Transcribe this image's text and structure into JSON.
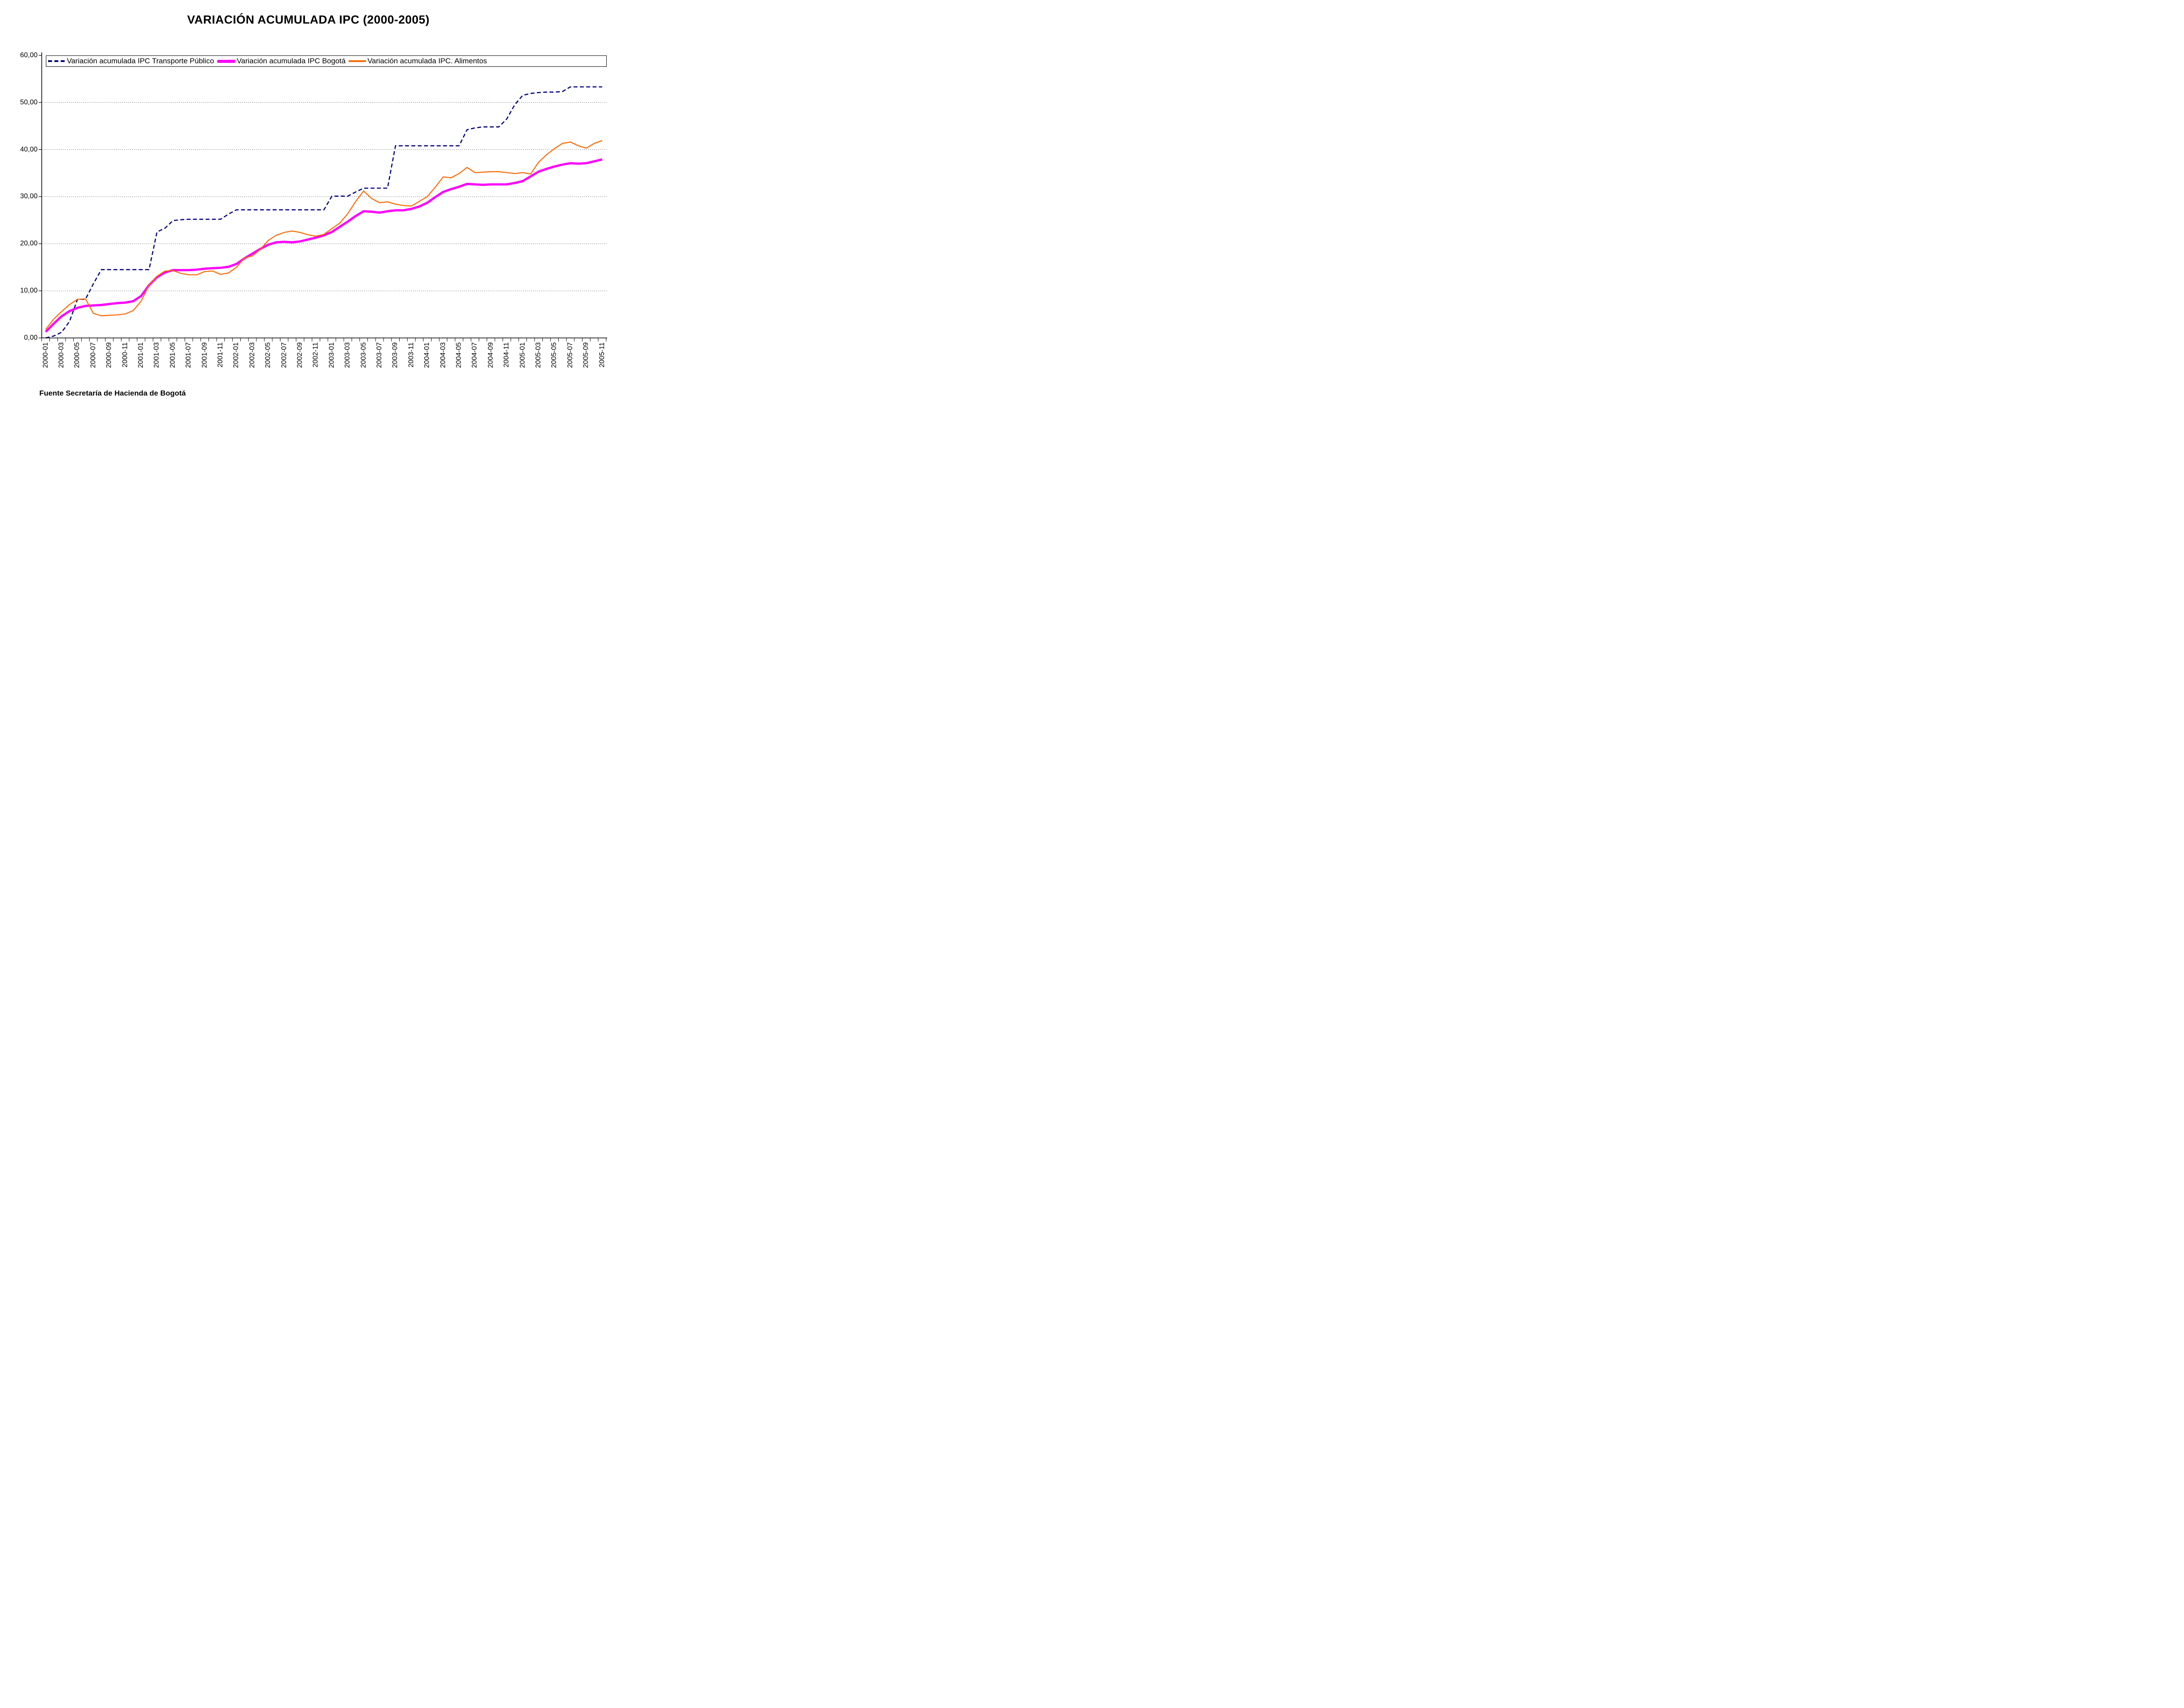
{
  "title": "VARIACIÓN ACUMULADA IPC (2000-2005)",
  "source_note": "Fuente Secretaría de Hacienda de Bogotá",
  "colors": {
    "transporte": "#000080",
    "bogota": "#FF00FF",
    "alimentos": "#FF6600",
    "grid": "#555555",
    "axis": "#000000"
  },
  "legend": {
    "position": "top-inside",
    "items": [
      {
        "key": "transporte",
        "label": "Variación acumulada IPC Transporte Público",
        "color": "#000080",
        "line_style": "dashed"
      },
      {
        "key": "bogota",
        "label": "Variación acumulada IPC Bogotá",
        "color": "#FF00FF",
        "line_style": "thick"
      },
      {
        "key": "alimentos",
        "label": "Variación acumulada IPC. Alimentos",
        "color": "#FF6600",
        "line_style": "thin"
      }
    ]
  },
  "y_axis": {
    "min": 0,
    "max": 60,
    "step": 10,
    "tick_labels": [
      "0,00",
      "10,00",
      "20,00",
      "30,00",
      "40,00",
      "50,00",
      "60,00"
    ]
  },
  "x_axis": {
    "tick_labels": [
      "2000-01",
      "2000-03",
      "2000-05",
      "2000-07",
      "2000-09",
      "2000-11",
      "2001-01",
      "2001-03",
      "2001-05",
      "2001-07",
      "2001-09",
      "2001-11",
      "2002-01",
      "2002-03",
      "2002-05",
      "2002-07",
      "2002-09",
      "2002-11",
      "2003-01",
      "2003-03",
      "2003-05",
      "2003-07",
      "2003-09",
      "2003-11",
      "2004-01",
      "2004-03",
      "2004-05",
      "2004-07",
      "2004-09",
      "2004-11",
      "2005-01",
      "2005-03",
      "2005-05",
      "2005-07",
      "2005-09",
      "2005-11"
    ]
  },
  "chart_data": {
    "type": "line",
    "title": "VARIACIÓN ACUMULADA IPC (2000-2005)",
    "ylim": [
      0,
      60
    ],
    "grid": "horizontal-dotted",
    "legend_position": "top-inside",
    "x": [
      "2000-01",
      "2000-02",
      "2000-03",
      "2000-04",
      "2000-05",
      "2000-06",
      "2000-07",
      "2000-08",
      "2000-09",
      "2000-10",
      "2000-11",
      "2000-12",
      "2001-01",
      "2001-02",
      "2001-03",
      "2001-04",
      "2001-05",
      "2001-06",
      "2001-07",
      "2001-08",
      "2001-09",
      "2001-10",
      "2001-11",
      "2001-12",
      "2002-01",
      "2002-02",
      "2002-03",
      "2002-04",
      "2002-05",
      "2002-06",
      "2002-07",
      "2002-08",
      "2002-09",
      "2002-10",
      "2002-11",
      "2002-12",
      "2003-01",
      "2003-02",
      "2003-03",
      "2003-04",
      "2003-05",
      "2003-06",
      "2003-07",
      "2003-08",
      "2003-09",
      "2003-10",
      "2003-11",
      "2003-12",
      "2004-01",
      "2004-02",
      "2004-03",
      "2004-04",
      "2004-05",
      "2004-06",
      "2004-07",
      "2004-08",
      "2004-09",
      "2004-10",
      "2004-11",
      "2004-12",
      "2005-01",
      "2005-02",
      "2005-03",
      "2005-04",
      "2005-05",
      "2005-06",
      "2005-07",
      "2005-08",
      "2005-09",
      "2005-10",
      "2005-11"
    ],
    "series": [
      {
        "key": "transporte",
        "name": "Variación acumulada IPC Transporte Público",
        "color": "#000080",
        "line_style": "dashed",
        "values": [
          0.0,
          0.4,
          1.2,
          3.5,
          8.2,
          8.2,
          11.5,
          14.5,
          14.5,
          14.5,
          14.5,
          14.5,
          14.5,
          14.5,
          22.5,
          23.3,
          24.9,
          25.1,
          25.2,
          25.2,
          25.2,
          25.2,
          25.2,
          26.3,
          27.2,
          27.2,
          27.2,
          27.2,
          27.2,
          27.2,
          27.2,
          27.2,
          27.2,
          27.2,
          27.2,
          27.2,
          30.1,
          30.1,
          30.1,
          31.0,
          31.8,
          31.8,
          31.8,
          31.8,
          40.8,
          40.8,
          40.8,
          40.8,
          40.8,
          40.8,
          40.8,
          40.8,
          40.8,
          44.2,
          44.6,
          44.8,
          44.8,
          44.8,
          46.5,
          49.5,
          51.5,
          51.9,
          52.1,
          52.2,
          52.2,
          52.3,
          53.3,
          53.3,
          53.3,
          53.3,
          53.3
        ]
      },
      {
        "key": "bogota",
        "name": "Variación acumulada IPC Bogotá",
        "color": "#FF00FF",
        "line_style": "thick",
        "values": [
          1.3,
          3.0,
          4.6,
          5.7,
          6.4,
          6.8,
          6.9,
          7.0,
          7.2,
          7.4,
          7.5,
          7.8,
          8.9,
          11.2,
          12.9,
          13.9,
          14.4,
          14.4,
          14.4,
          14.5,
          14.7,
          14.8,
          14.9,
          15.1,
          15.7,
          16.9,
          17.9,
          18.9,
          19.8,
          20.3,
          20.4,
          20.3,
          20.5,
          20.9,
          21.3,
          21.8,
          22.5,
          23.6,
          24.7,
          25.9,
          26.9,
          26.8,
          26.6,
          26.9,
          27.1,
          27.1,
          27.4,
          27.9,
          28.7,
          29.9,
          31.0,
          31.6,
          32.1,
          32.7,
          32.6,
          32.5,
          32.6,
          32.6,
          32.6,
          32.9,
          33.3,
          34.3,
          35.3,
          35.9,
          36.4,
          36.8,
          37.1,
          37.0,
          37.1,
          37.5,
          37.9
        ]
      },
      {
        "key": "alimentos",
        "name": "Variación acumulada IPC. Alimentos",
        "color": "#FF6600",
        "line_style": "thin",
        "values": [
          1.8,
          4.0,
          5.6,
          7.1,
          8.2,
          8.3,
          5.2,
          4.7,
          4.8,
          4.9,
          5.1,
          5.8,
          7.8,
          11.2,
          13.1,
          14.2,
          14.3,
          13.7,
          13.4,
          13.4,
          14.1,
          14.2,
          13.5,
          13.8,
          15.0,
          17.0,
          17.4,
          18.8,
          20.7,
          21.8,
          22.4,
          22.7,
          22.4,
          21.9,
          21.6,
          22.0,
          23.2,
          24.4,
          26.4,
          29.0,
          31.2,
          29.6,
          28.7,
          28.9,
          28.4,
          28.1,
          28.0,
          29.0,
          30.0,
          32.0,
          34.2,
          34.0,
          34.9,
          36.2,
          35.1,
          35.2,
          35.3,
          35.3,
          35.1,
          34.9,
          35.1,
          34.8,
          37.3,
          38.9,
          40.2,
          41.3,
          41.6,
          40.8,
          40.3,
          41.3,
          41.9
        ]
      }
    ]
  }
}
